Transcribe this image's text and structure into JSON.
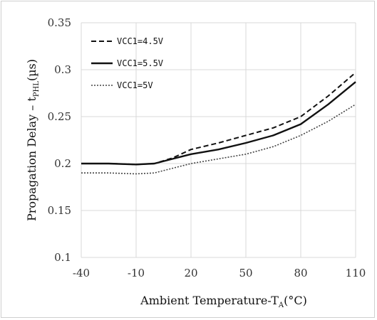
{
  "chart_data": {
    "type": "line",
    "xlabel": "Ambient Temperature-T",
    "xlabel_sub": "A",
    "xlabel_unit": "(°C)",
    "ylabel": "Propagation Delay – t",
    "ylabel_sub": "PHL",
    "ylabel_unit": "(µs)",
    "x_ticks": [
      "-40",
      "-10",
      "20",
      "50",
      "80",
      "110"
    ],
    "y_ticks": [
      "0.1",
      "0.15",
      "0.2",
      "0.25",
      "0.3",
      "0.35"
    ],
    "xlim": [
      -40,
      110
    ],
    "ylim": [
      0.1,
      0.35
    ],
    "grid": true,
    "legend_position": "top-left",
    "series": [
      {
        "name": "VCC1=4.5V",
        "style": "dashed",
        "color": "#111111",
        "x": [
          -40,
          -25,
          -10,
          0,
          10,
          20,
          35,
          50,
          65,
          80,
          95,
          110
        ],
        "values": [
          0.2,
          0.2,
          0.199,
          0.2,
          0.206,
          0.215,
          0.222,
          0.23,
          0.238,
          0.25,
          0.272,
          0.297
        ]
      },
      {
        "name": "VCC1=5.5V",
        "style": "solid",
        "color": "#111111",
        "x": [
          -40,
          -25,
          -10,
          0,
          10,
          20,
          35,
          50,
          65,
          80,
          95,
          110
        ],
        "values": [
          0.2,
          0.2,
          0.199,
          0.2,
          0.205,
          0.21,
          0.215,
          0.222,
          0.23,
          0.242,
          0.263,
          0.287
        ]
      },
      {
        "name": "VCC1=5V",
        "style": "dotted",
        "color": "#444444",
        "x": [
          -40,
          -25,
          -10,
          0,
          10,
          20,
          35,
          50,
          65,
          80,
          95,
          110
        ],
        "values": [
          0.19,
          0.19,
          0.189,
          0.19,
          0.195,
          0.2,
          0.205,
          0.21,
          0.218,
          0.23,
          0.245,
          0.263
        ]
      }
    ]
  }
}
